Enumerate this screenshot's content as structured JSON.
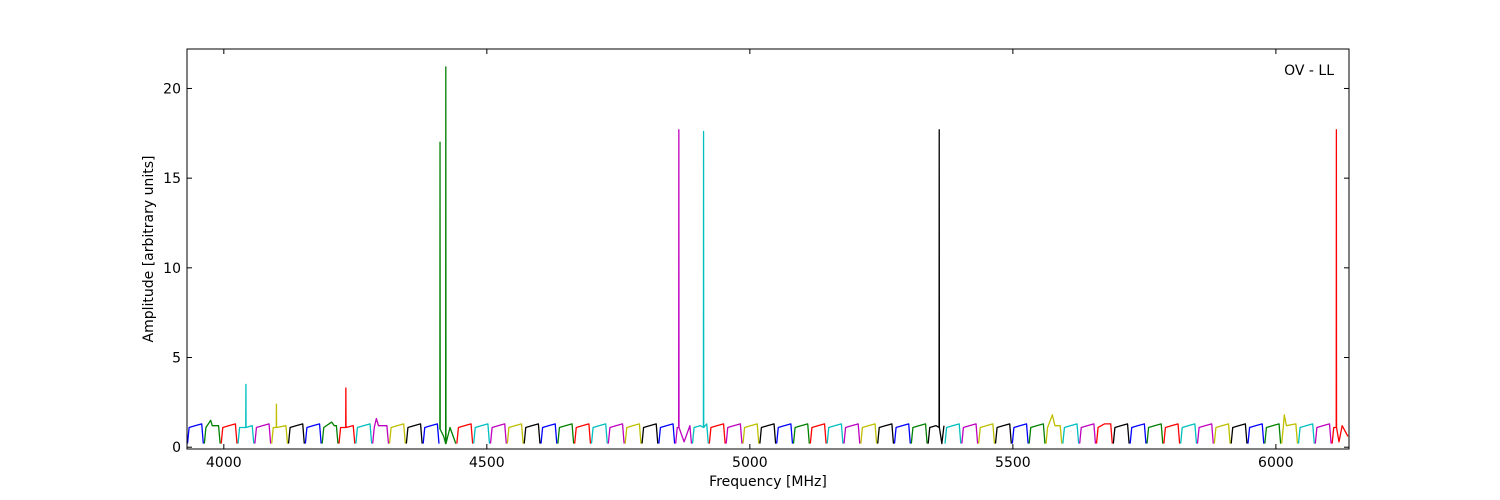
{
  "chart_data": {
    "type": "line",
    "annotation": "OV - LL",
    "xlabel": "Frequency [MHz]",
    "ylabel": "Amplitude [arbitrary units]",
    "xlim": [
      3930,
      6139
    ],
    "ylim": [
      -0.1,
      22.2
    ],
    "xticks": [
      4000,
      4500,
      5000,
      5500,
      6000
    ],
    "yticks": [
      0,
      5,
      10,
      15,
      20
    ],
    "grid": false,
    "series": [
      {
        "color": "#0000ff",
        "x": [
          3931,
          3934,
          3946,
          3958,
          3961
        ],
        "values": [
          0.2,
          1.1,
          1.2,
          1.3,
          0.2
        ]
      },
      {
        "color": "#008000",
        "x": [
          3963,
          3966,
          3975,
          3978,
          3990,
          3993
        ],
        "values": [
          0.2,
          1.1,
          1.5,
          1.2,
          1.2,
          0.2
        ]
      },
      {
        "color": "#ff0000",
        "x": [
          3995,
          3998,
          4010,
          4022,
          4025
        ],
        "values": [
          0.2,
          1.1,
          1.2,
          1.3,
          0.2
        ]
      },
      {
        "color": "#00bfbf",
        "x": [
          4027,
          4030,
          4041.7,
          4042,
          4042.3,
          4054,
          4057
        ],
        "values": [
          0.2,
          1.1,
          1.1,
          3.5,
          1.1,
          1.2,
          0.2
        ]
      },
      {
        "color": "#bf00bf",
        "x": [
          4059,
          4062,
          4074,
          4086,
          4089
        ],
        "values": [
          0.2,
          1.1,
          1.2,
          1.3,
          0.2
        ]
      },
      {
        "color": "#bfbf00",
        "x": [
          4091,
          4094,
          4099.7,
          4100,
          4100.3,
          4118,
          4121
        ],
        "values": [
          0.2,
          1.1,
          1.1,
          2.4,
          1.1,
          1.2,
          0.2
        ]
      },
      {
        "color": "#000000",
        "x": [
          4123,
          4126,
          4138,
          4150,
          4153
        ],
        "values": [
          0.2,
          1.1,
          1.2,
          1.3,
          0.2
        ]
      },
      {
        "color": "#0000ff",
        "x": [
          4155,
          4158,
          4170,
          4182,
          4185
        ],
        "values": [
          0.2,
          1.1,
          1.2,
          1.3,
          0.2
        ]
      },
      {
        "color": "#008000",
        "x": [
          4187,
          4190,
          4205,
          4210,
          4214,
          4217
        ],
        "values": [
          0.2,
          1.1,
          1.4,
          1.2,
          1.2,
          0.2
        ]
      },
      {
        "color": "#ff0000",
        "x": [
          4219,
          4222,
          4231.7,
          4232,
          4232.3,
          4246,
          4249
        ],
        "values": [
          0.2,
          1.1,
          1.1,
          3.3,
          1.1,
          1.2,
          0.2
        ]
      },
      {
        "color": "#00bfbf",
        "x": [
          4251,
          4254,
          4266,
          4278,
          4281
        ],
        "values": [
          0.2,
          1.1,
          1.2,
          1.3,
          0.2
        ]
      },
      {
        "color": "#bf00bf",
        "x": [
          4283,
          4286,
          4290,
          4294,
          4310,
          4313
        ],
        "values": [
          0.2,
          1.1,
          1.6,
          1.2,
          1.2,
          0.2
        ]
      },
      {
        "color": "#bfbf00",
        "x": [
          4315,
          4318,
          4330,
          4342,
          4345
        ],
        "values": [
          0.2,
          1.1,
          1.2,
          1.3,
          0.2
        ]
      },
      {
        "color": "#000000",
        "x": [
          4347,
          4350,
          4362,
          4374,
          4377
        ],
        "values": [
          0.2,
          1.1,
          1.2,
          1.3,
          0.2
        ]
      },
      {
        "color": "#0000ff",
        "x": [
          4379,
          4382,
          4394,
          4406,
          4409
        ],
        "values": [
          0.2,
          1.1,
          1.2,
          1.3,
          0.2
        ]
      },
      {
        "color": "#008000",
        "x": [
          4410.7,
          4411,
          4411.3,
          4418,
          4421.7,
          4422,
          4422.3,
          4430,
          4441
        ],
        "values": [
          1.0,
          17.0,
          1.0,
          0.6,
          0.2,
          21.2,
          0.2,
          1.1,
          0.2
        ]
      },
      {
        "color": "#ff0000",
        "x": [
          4443,
          4446,
          4458,
          4470,
          4473
        ],
        "values": [
          0.2,
          1.1,
          1.2,
          1.3,
          0.2
        ]
      },
      {
        "color": "#00bfbf",
        "x": [
          4475,
          4478,
          4490,
          4502,
          4505
        ],
        "values": [
          0.2,
          1.1,
          1.2,
          1.3,
          0.2
        ]
      },
      {
        "color": "#bf00bf",
        "x": [
          4507,
          4510,
          4522,
          4534,
          4537
        ],
        "values": [
          0.2,
          1.1,
          1.2,
          1.3,
          0.2
        ]
      },
      {
        "color": "#bfbf00",
        "x": [
          4539,
          4542,
          4554,
          4566,
          4569
        ],
        "values": [
          0.2,
          1.1,
          1.2,
          1.3,
          0.2
        ]
      },
      {
        "color": "#000000",
        "x": [
          4571,
          4574,
          4586,
          4598,
          4601
        ],
        "values": [
          0.2,
          1.1,
          1.2,
          1.3,
          0.2
        ]
      },
      {
        "color": "#0000ff",
        "x": [
          4603,
          4606,
          4618,
          4630,
          4633
        ],
        "values": [
          0.2,
          1.1,
          1.2,
          1.3,
          0.2
        ]
      },
      {
        "color": "#008000",
        "x": [
          4635,
          4638,
          4650,
          4662,
          4665
        ],
        "values": [
          0.2,
          1.1,
          1.2,
          1.3,
          0.2
        ]
      },
      {
        "color": "#ff0000",
        "x": [
          4667,
          4670,
          4682,
          4694,
          4697
        ],
        "values": [
          0.2,
          1.1,
          1.2,
          1.3,
          0.2
        ]
      },
      {
        "color": "#00bfbf",
        "x": [
          4699,
          4702,
          4714,
          4726,
          4729
        ],
        "values": [
          0.2,
          1.1,
          1.2,
          1.3,
          0.2
        ]
      },
      {
        "color": "#bf00bf",
        "x": [
          4731,
          4734,
          4746,
          4758,
          4761
        ],
        "values": [
          0.2,
          1.1,
          1.2,
          1.3,
          0.2
        ]
      },
      {
        "color": "#bfbf00",
        "x": [
          4763,
          4766,
          4778,
          4790,
          4793
        ],
        "values": [
          0.2,
          1.1,
          1.2,
          1.3,
          0.2
        ]
      },
      {
        "color": "#000000",
        "x": [
          4795,
          4798,
          4810,
          4822,
          4825
        ],
        "values": [
          0.2,
          1.1,
          1.2,
          1.3,
          0.2
        ]
      },
      {
        "color": "#0000ff",
        "x": [
          4827,
          4830,
          4842,
          4854,
          4857
        ],
        "values": [
          0.2,
          1.1,
          1.2,
          1.3,
          0.2
        ]
      },
      {
        "color": "#bf00bf",
        "x": [
          4859,
          4862,
          4864.7,
          4865,
          4865.3,
          4875,
          4886,
          4889
        ],
        "values": [
          0.2,
          1.1,
          1.1,
          17.7,
          1.1,
          0.3,
          1.2,
          0.2
        ]
      },
      {
        "color": "#00bfbf",
        "x": [
          4891,
          4894,
          4906,
          4911.7,
          4912,
          4912.3,
          4918,
          4921
        ],
        "values": [
          0.2,
          1.1,
          1.2,
          1.1,
          17.6,
          1.1,
          1.3,
          0.2
        ]
      },
      {
        "color": "#ff0000",
        "x": [
          4923,
          4926,
          4938,
          4950,
          4953
        ],
        "values": [
          0.2,
          1.1,
          1.2,
          1.3,
          0.2
        ]
      },
      {
        "color": "#bf00bf",
        "x": [
          4955,
          4958,
          4970,
          4982,
          4985
        ],
        "values": [
          0.2,
          1.1,
          1.2,
          1.3,
          0.2
        ]
      },
      {
        "color": "#bfbf00",
        "x": [
          4987,
          4990,
          5002,
          5014,
          5017
        ],
        "values": [
          0.2,
          1.1,
          1.2,
          1.3,
          0.2
        ]
      },
      {
        "color": "#000000",
        "x": [
          5019,
          5022,
          5034,
          5046,
          5049
        ],
        "values": [
          0.2,
          1.1,
          1.2,
          1.3,
          0.2
        ]
      },
      {
        "color": "#0000ff",
        "x": [
          5051,
          5054,
          5066,
          5078,
          5081
        ],
        "values": [
          0.2,
          1.1,
          1.2,
          1.3,
          0.2
        ]
      },
      {
        "color": "#008000",
        "x": [
          5083,
          5086,
          5098,
          5110,
          5113
        ],
        "values": [
          0.2,
          1.1,
          1.2,
          1.3,
          0.2
        ]
      },
      {
        "color": "#ff0000",
        "x": [
          5115,
          5118,
          5130,
          5142,
          5145
        ],
        "values": [
          0.2,
          1.1,
          1.2,
          1.3,
          0.2
        ]
      },
      {
        "color": "#00bfbf",
        "x": [
          5147,
          5150,
          5162,
          5174,
          5177
        ],
        "values": [
          0.2,
          1.1,
          1.2,
          1.3,
          0.2
        ]
      },
      {
        "color": "#bf00bf",
        "x": [
          5179,
          5182,
          5194,
          5206,
          5209
        ],
        "values": [
          0.2,
          1.1,
          1.2,
          1.3,
          0.2
        ]
      },
      {
        "color": "#bfbf00",
        "x": [
          5211,
          5214,
          5226,
          5238,
          5241
        ],
        "values": [
          0.2,
          1.1,
          1.2,
          1.3,
          0.2
        ]
      },
      {
        "color": "#000000",
        "x": [
          5243,
          5246,
          5258,
          5270,
          5273
        ],
        "values": [
          0.2,
          1.1,
          1.2,
          1.3,
          0.2
        ]
      },
      {
        "color": "#0000ff",
        "x": [
          5275,
          5278,
          5290,
          5302,
          5305
        ],
        "values": [
          0.2,
          1.1,
          1.2,
          1.3,
          0.2
        ]
      },
      {
        "color": "#008000",
        "x": [
          5307,
          5310,
          5322,
          5334,
          5337
        ],
        "values": [
          0.2,
          1.1,
          1.2,
          1.3,
          0.2
        ]
      },
      {
        "color": "#000000",
        "x": [
          5339,
          5342,
          5354,
          5359.7,
          5360,
          5360.3,
          5365,
          5369
        ],
        "values": [
          0.2,
          1.1,
          1.2,
          1.1,
          17.7,
          1.1,
          0.2,
          1.2
        ]
      },
      {
        "color": "#00bfbf",
        "x": [
          5371,
          5374,
          5386,
          5398,
          5401
        ],
        "values": [
          0.2,
          1.1,
          1.2,
          1.3,
          0.2
        ]
      },
      {
        "color": "#bf00bf",
        "x": [
          5403,
          5406,
          5418,
          5430,
          5433
        ],
        "values": [
          0.2,
          1.1,
          1.2,
          1.3,
          0.2
        ]
      },
      {
        "color": "#bfbf00",
        "x": [
          5435,
          5438,
          5450,
          5462,
          5465
        ],
        "values": [
          0.2,
          1.1,
          1.2,
          1.3,
          0.2
        ]
      },
      {
        "color": "#000000",
        "x": [
          5467,
          5470,
          5482,
          5494,
          5497
        ],
        "values": [
          0.2,
          1.1,
          1.2,
          1.3,
          0.2
        ]
      },
      {
        "color": "#0000ff",
        "x": [
          5499,
          5502,
          5514,
          5526,
          5529
        ],
        "values": [
          0.2,
          1.1,
          1.2,
          1.3,
          0.2
        ]
      },
      {
        "color": "#008000",
        "x": [
          5531,
          5534,
          5546,
          5558,
          5561
        ],
        "values": [
          0.2,
          1.1,
          1.2,
          1.3,
          0.2
        ]
      },
      {
        "color": "#bfbf00",
        "x": [
          5563,
          5566,
          5575,
          5580,
          5590,
          5593
        ],
        "values": [
          0.2,
          1.1,
          1.8,
          1.2,
          1.2,
          0.2
        ]
      },
      {
        "color": "#00bfbf",
        "x": [
          5595,
          5598,
          5610,
          5622,
          5625
        ],
        "values": [
          0.2,
          1.1,
          1.2,
          1.3,
          0.2
        ]
      },
      {
        "color": "#bf00bf",
        "x": [
          5627,
          5630,
          5642,
          5654,
          5657
        ],
        "values": [
          0.2,
          1.1,
          1.2,
          1.3,
          0.2
        ]
      },
      {
        "color": "#ff0000",
        "x": [
          5659,
          5662,
          5674,
          5686,
          5689
        ],
        "values": [
          0.2,
          1.1,
          1.3,
          1.3,
          0.2
        ]
      },
      {
        "color": "#000000",
        "x": [
          5691,
          5694,
          5706,
          5718,
          5721
        ],
        "values": [
          0.2,
          1.1,
          1.2,
          1.3,
          0.2
        ]
      },
      {
        "color": "#0000ff",
        "x": [
          5723,
          5726,
          5738,
          5750,
          5753
        ],
        "values": [
          0.2,
          1.1,
          1.2,
          1.3,
          0.2
        ]
      },
      {
        "color": "#008000",
        "x": [
          5755,
          5758,
          5770,
          5782,
          5785
        ],
        "values": [
          0.2,
          1.1,
          1.2,
          1.3,
          0.2
        ]
      },
      {
        "color": "#ff0000",
        "x": [
          5787,
          5790,
          5802,
          5814,
          5817
        ],
        "values": [
          0.2,
          1.1,
          1.2,
          1.3,
          0.2
        ]
      },
      {
        "color": "#00bfbf",
        "x": [
          5819,
          5822,
          5834,
          5846,
          5849
        ],
        "values": [
          0.2,
          1.1,
          1.2,
          1.3,
          0.2
        ]
      },
      {
        "color": "#bf00bf",
        "x": [
          5851,
          5854,
          5866,
          5878,
          5881
        ],
        "values": [
          0.2,
          1.1,
          1.2,
          1.3,
          0.2
        ]
      },
      {
        "color": "#bfbf00",
        "x": [
          5883,
          5886,
          5898,
          5910,
          5913
        ],
        "values": [
          0.2,
          1.1,
          1.2,
          1.3,
          0.2
        ]
      },
      {
        "color": "#000000",
        "x": [
          5915,
          5918,
          5930,
          5942,
          5945
        ],
        "values": [
          0.2,
          1.1,
          1.2,
          1.3,
          0.2
        ]
      },
      {
        "color": "#0000ff",
        "x": [
          5947,
          5950,
          5962,
          5974,
          5977
        ],
        "values": [
          0.2,
          1.1,
          1.2,
          1.3,
          0.2
        ]
      },
      {
        "color": "#008000",
        "x": [
          5979,
          5982,
          5994,
          6006,
          6009
        ],
        "values": [
          0.2,
          1.1,
          1.2,
          1.3,
          0.2
        ]
      },
      {
        "color": "#bfbf00",
        "x": [
          6011,
          6014,
          6016,
          6020,
          6038,
          6041
        ],
        "values": [
          0.2,
          1.1,
          1.8,
          1.2,
          1.3,
          0.2
        ]
      },
      {
        "color": "#00bfbf",
        "x": [
          6043,
          6046,
          6058,
          6070,
          6073
        ],
        "values": [
          0.2,
          1.1,
          1.2,
          1.3,
          0.2
        ]
      },
      {
        "color": "#bf00bf",
        "x": [
          6075,
          6078,
          6090,
          6102,
          6105
        ],
        "values": [
          0.2,
          1.1,
          1.2,
          1.3,
          0.2
        ]
      },
      {
        "color": "#ff0000",
        "x": [
          6107,
          6110,
          6114.7,
          6115,
          6115.3,
          6120,
          6126,
          6137
        ],
        "values": [
          0.2,
          1.1,
          1.1,
          17.7,
          1.1,
          0.3,
          1.2,
          0.6
        ]
      }
    ]
  }
}
